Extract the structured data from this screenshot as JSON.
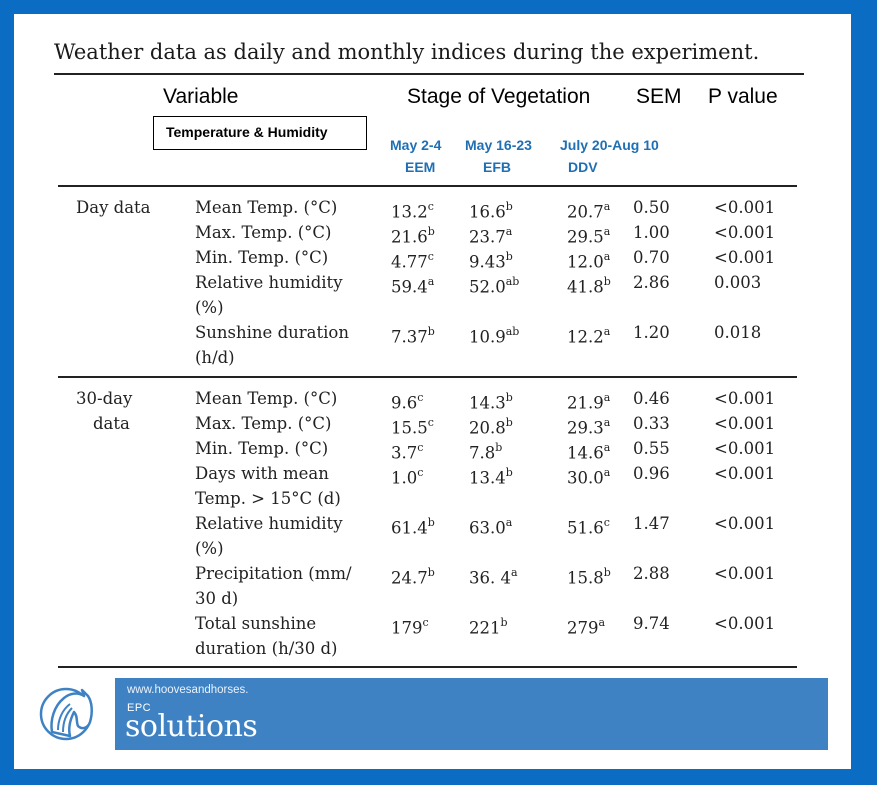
{
  "title": "Weather data as daily and monthly indices during the experiment.",
  "headers": {
    "variable": "Variable",
    "stage": "Stage of Vegetation",
    "sem": "SEM",
    "p_value": "P value",
    "box_label": "Temperature & Humidity",
    "stages": [
      {
        "dates": "May 2-4",
        "code": "EEM"
      },
      {
        "dates": "May 16-23",
        "code": "EFB"
      },
      {
        "dates": "July 20-Aug 10",
        "code": "DDV"
      }
    ]
  },
  "groups": [
    {
      "label_lines": [
        "Day data"
      ],
      "rows": [
        {
          "var_lines": [
            "Mean Temp. (°C)"
          ],
          "v1": "13.2",
          "s1": "c",
          "v2": "16.6",
          "s2": "b",
          "v3": "20.7",
          "s3": "a",
          "sem": "0.50",
          "p": "<0.001"
        },
        {
          "var_lines": [
            "Max. Temp. (°C)"
          ],
          "v1": "21.6",
          "s1": "b",
          "v2": "23.7",
          "s2": "a",
          "v3": "29.5",
          "s3": "a",
          "sem": "1.00",
          "p": "<0.001"
        },
        {
          "var_lines": [
            "Min. Temp. (°C)"
          ],
          "v1": "4.77",
          "s1": "c",
          "v2": "9.43",
          "s2": "b",
          "v3": "12.0",
          "s3": "a",
          "sem": "0.70",
          "p": "<0.001"
        },
        {
          "var_lines": [
            "Relative humidity",
            "(%)"
          ],
          "v1": "59.4",
          "s1": "a",
          "v2": "52.0",
          "s2": "ab",
          "v3": "41.8",
          "s3": "b",
          "sem": "2.86",
          "p": "0.003"
        },
        {
          "var_lines": [
            "Sunshine duration",
            "(h/d)"
          ],
          "v1": "7.37",
          "s1": "b",
          "v2": "10.9",
          "s2": "ab",
          "v3": "12.2",
          "s3": "a",
          "sem": "1.20",
          "p": "0.018"
        }
      ]
    },
    {
      "label_lines": [
        "30-day",
        "data"
      ],
      "rows": [
        {
          "var_lines": [
            "Mean Temp. (°C)"
          ],
          "v1": "9.6",
          "s1": "c",
          "v2": "14.3",
          "s2": "b",
          "v3": "21.9",
          "s3": "a",
          "sem": "0.46",
          "p": "<0.001"
        },
        {
          "var_lines": [
            "Max. Temp. (°C)"
          ],
          "v1": "15.5",
          "s1": "c",
          "v2": "20.8",
          "s2": "b",
          "v3": "29.3",
          "s3": "a",
          "sem": "0.33",
          "p": "<0.001"
        },
        {
          "var_lines": [
            "Min. Temp. (°C)"
          ],
          "v1": "3.7",
          "s1": "c",
          "v2": "7.8",
          "s2": "b",
          "v3": "14.6",
          "s3": "a",
          "sem": "0.55",
          "p": "<0.001"
        },
        {
          "var_lines": [
            "Days with mean",
            "Temp. > 15°C (d)"
          ],
          "v1": "1.0",
          "s1": "c",
          "v2": "13.4",
          "s2": "b",
          "v3": "30.0",
          "s3": "a",
          "sem": "0.96",
          "p": "<0.001"
        },
        {
          "var_lines": [
            "Relative humidity",
            "(%)"
          ],
          "v1": "61.4",
          "s1": "b",
          "v2": "63.0",
          "s2": "a",
          "v3": "51.6",
          "s3": "c",
          "sem": "1.47",
          "p": "<0.001"
        },
        {
          "var_lines": [
            "Precipitation (mm/",
            "30 d)"
          ],
          "v1": "24.7",
          "s1": "b",
          "v2": "36. 4",
          "s2": "a",
          "v3": "15.8",
          "s3": "b",
          "sem": "2.88",
          "p": "<0.001"
        },
        {
          "var_lines": [
            "Total sunshine",
            "duration (h/30 d)"
          ],
          "v1": "179",
          "s1": "c",
          "v2": "221",
          "s2": "b",
          "v3": "279",
          "s3": "a",
          "sem": "9.74",
          "p": "<0.001"
        }
      ]
    }
  ],
  "banner": {
    "url": "www.hoovesandhorses.",
    "brand_small": "EPC",
    "brand_large": "solutions",
    "logo_icon": "horse-head-icon"
  },
  "colors": {
    "frame": "#0b6cc4",
    "banner": "#3f82c4",
    "stage_text": "#1f6fb4"
  }
}
